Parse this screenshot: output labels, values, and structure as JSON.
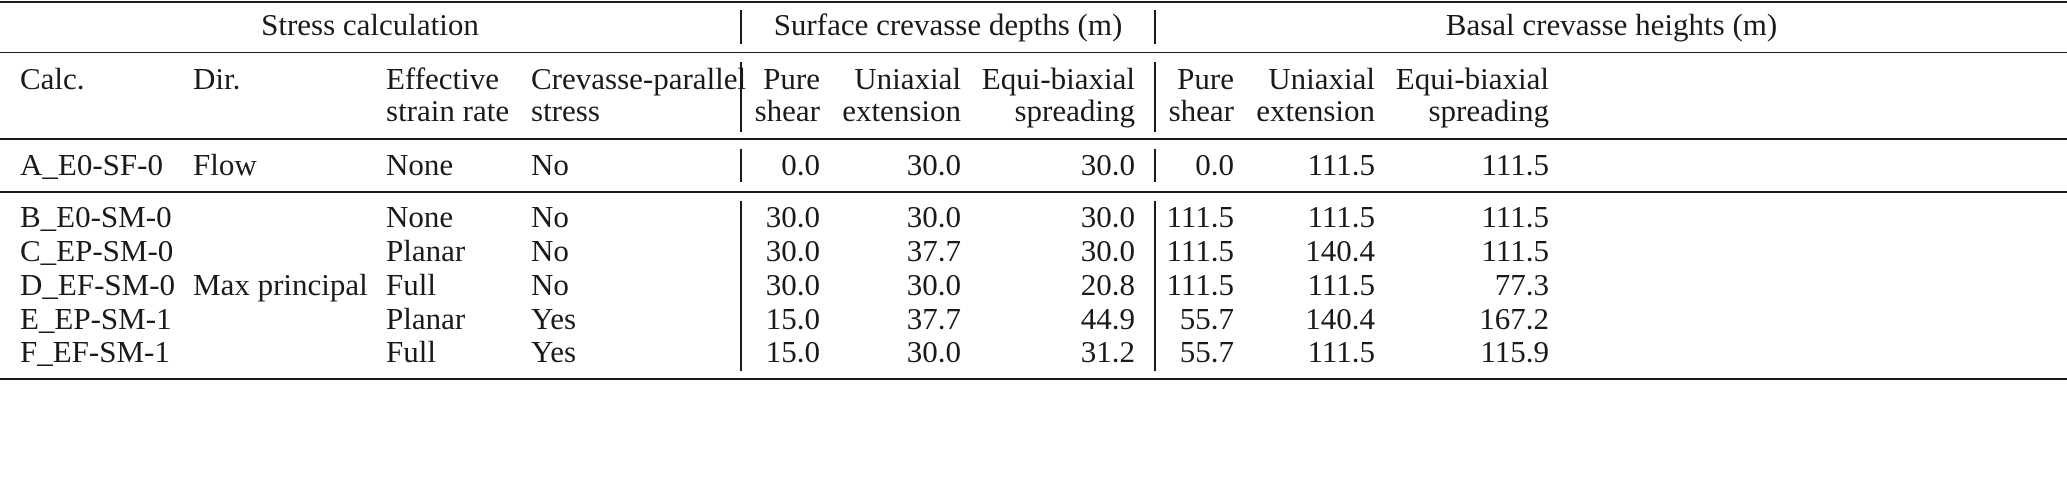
{
  "groups": {
    "stress": "Stress calculation",
    "surface": "Surface crevasse depths (m)",
    "basal": "Basal crevasse heights (m)"
  },
  "headers": {
    "calc": "Calc.",
    "dir": "Dir.",
    "esr": [
      "Effective",
      "strain rate"
    ],
    "cps": [
      "Crevasse-parallel",
      "stress"
    ],
    "pure": [
      "Pure",
      "shear"
    ],
    "uni": [
      "Uniaxial",
      "extension"
    ],
    "equi": [
      "Equi-biaxial",
      "spreading"
    ]
  },
  "rows": [
    {
      "calc": "A_E0-SF-0",
      "dir": "Flow",
      "esr": "None",
      "cps": "No",
      "s": [
        "0.0",
        "30.0",
        "30.0"
      ],
      "b": [
        "0.0",
        "111.5",
        "111.5"
      ]
    },
    {
      "calc": "B_E0-SM-0",
      "dir": "",
      "esr": "None",
      "cps": "No",
      "s": [
        "30.0",
        "30.0",
        "30.0"
      ],
      "b": [
        "111.5",
        "111.5",
        "111.5"
      ]
    },
    {
      "calc": "C_EP-SM-0",
      "dir": "",
      "esr": "Planar",
      "cps": "No",
      "s": [
        "30.0",
        "37.7",
        "30.0"
      ],
      "b": [
        "111.5",
        "140.4",
        "111.5"
      ]
    },
    {
      "calc": "D_EF-SM-0",
      "dir": "Max principal",
      "esr": "Full",
      "cps": "No",
      "s": [
        "30.0",
        "30.0",
        "20.8"
      ],
      "b": [
        "111.5",
        "111.5",
        "77.3"
      ]
    },
    {
      "calc": "E_EP-SM-1",
      "dir": "",
      "esr": "Planar",
      "cps": "Yes",
      "s": [
        "15.0",
        "37.7",
        "44.9"
      ],
      "b": [
        "55.7",
        "140.4",
        "167.2"
      ]
    },
    {
      "calc": "F_EF-SM-1",
      "dir": "",
      "esr": "Full",
      "cps": "Yes",
      "s": [
        "15.0",
        "30.0",
        "31.2"
      ],
      "b": [
        "55.7",
        "111.5",
        "115.9"
      ]
    }
  ]
}
